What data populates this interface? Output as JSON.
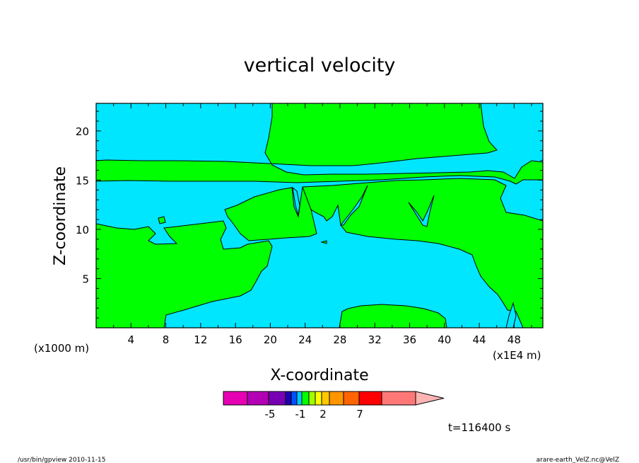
{
  "chart_data": {
    "type": "heatmap",
    "title": "vertical velocity",
    "xlabel": "X-coordinate",
    "ylabel": "Z-coordinate",
    "x_unit_left": "(x1000 m)",
    "x_unit_right": "(x1E4 m)",
    "xlim": [
      0,
      51.3
    ],
    "ylim": [
      0,
      22.8
    ],
    "x_ticks": [
      4,
      8,
      12,
      16,
      20,
      24,
      28,
      32,
      36,
      40,
      44,
      48
    ],
    "y_ticks": [
      5,
      10,
      15,
      20
    ],
    "time_label": "t=116400 s",
    "colorbar": {
      "colors": [
        "#e600b4",
        "#b400b4",
        "#7800b4",
        "#1e00b4",
        "#0050ff",
        "#00c8ff",
        "#00ff00",
        "#a0ff00",
        "#ffff00",
        "#ffc800",
        "#ff9600",
        "#ff6400",
        "#ff0000",
        "#ff7878",
        "#ffb4b4"
      ],
      "labels": [
        "-5",
        "-1",
        "2",
        "7"
      ]
    },
    "fill_colors": {
      "positive": "#00ff00",
      "negative": "#00e6ff"
    }
  },
  "footer": {
    "left": "/usr/bin/gpview   2010-11-15",
    "right": "arare-earth_VelZ.nc@VelZ"
  }
}
